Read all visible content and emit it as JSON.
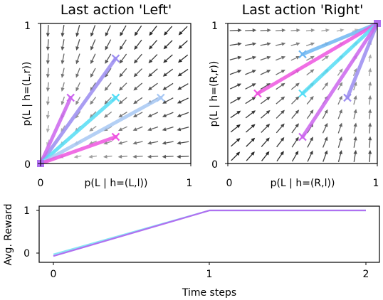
{
  "chart_data": [
    {
      "type": "quiver",
      "title": "Last action 'Left'",
      "xlabel": "p(L | h=(L,l))",
      "ylabel": "p(L | h=(L,r))",
      "xlim": [
        0,
        1
      ],
      "ylim": [
        0,
        1
      ],
      "xticks": [
        "0",
        "1"
      ],
      "yticks": [
        "0",
        "1"
      ],
      "field_direction": "toward origin (0,0)",
      "trajectories": [
        {
          "color": "#9b8cf0",
          "start": [
            0.5,
            0.75
          ],
          "end": [
            0.0,
            0.0
          ]
        },
        {
          "color": "#cc66ee",
          "start": [
            0.2,
            0.47
          ],
          "end": [
            0.0,
            0.0
          ]
        },
        {
          "color": "#55ddf5",
          "start": [
            0.5,
            0.47
          ],
          "end": [
            0.0,
            0.0
          ]
        },
        {
          "color": "#a8c8f4",
          "start": [
            0.8,
            0.47
          ],
          "end": [
            0.0,
            0.0
          ]
        },
        {
          "color": "#ee55e0",
          "start": [
            0.5,
            0.19
          ],
          "end": [
            0.0,
            0.0
          ]
        }
      ]
    },
    {
      "type": "quiver",
      "title": "Last action 'Right'",
      "xlabel": "p(L | h=(R,l))",
      "ylabel": "p(L | h=(R,r))",
      "xlim": [
        0,
        1
      ],
      "ylim": [
        0,
        1
      ],
      "xticks": [
        "0",
        "1"
      ],
      "yticks": [
        "0",
        "1"
      ],
      "field_direction": "toward (1,1)",
      "trajectories": [
        {
          "color": "#6fb7f2",
          "start": [
            0.5,
            0.78
          ],
          "end": [
            1.0,
            1.0
          ]
        },
        {
          "color": "#ee55e0",
          "start": [
            0.2,
            0.5
          ],
          "end": [
            1.0,
            1.0
          ]
        },
        {
          "color": "#55ddf5",
          "start": [
            0.5,
            0.5
          ],
          "end": [
            1.0,
            1.0
          ]
        },
        {
          "color": "#9b8cf0",
          "start": [
            0.8,
            0.47
          ],
          "end": [
            1.0,
            1.0
          ]
        },
        {
          "color": "#cc66ee",
          "start": [
            0.5,
            0.19
          ],
          "end": [
            1.0,
            1.0
          ]
        }
      ]
    },
    {
      "type": "line",
      "title": "",
      "xlabel": "Time steps",
      "ylabel": "Avg. Reward",
      "x": [
        0,
        1,
        2
      ],
      "xticks": [
        "0",
        "1",
        "2"
      ],
      "yticks": [
        "0",
        "1"
      ],
      "ylim": [
        -0.1,
        1.05
      ],
      "series": [
        {
          "color": "#88e6f4",
          "values": [
            -0.03,
            1.0,
            1.0
          ]
        },
        {
          "color": "#b070f0",
          "values": [
            -0.07,
            1.0,
            1.0
          ]
        }
      ]
    }
  ]
}
